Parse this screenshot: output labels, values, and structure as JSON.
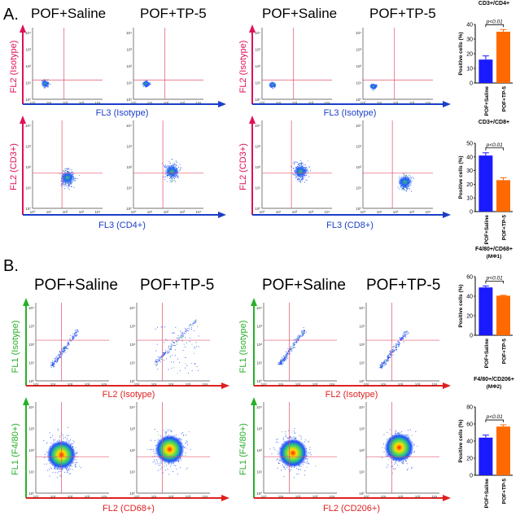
{
  "panel_labels": {
    "a": "A.",
    "b": "B."
  },
  "groups": {
    "saline": "POF+Saline",
    "tp5": "POF+TP-5"
  },
  "panel_a": {
    "left": {
      "iso_y": "FL2 (Isotype)",
      "iso_x": "FL3 (Isotype)",
      "stain_y": "FL2 (CD3+)",
      "stain_x": "FL3 (CD4+)"
    },
    "right": {
      "iso_y": "FL2 (Isotype)",
      "iso_x": "FL3 (Isotype)",
      "stain_y": "FL2 (CD3+)",
      "stain_x": "FL3 (CD8+)"
    }
  },
  "panel_b": {
    "left": {
      "iso_y": "FL1 (Isotype)",
      "iso_x": "FL2 (Isotype)",
      "stain_y": "FL1 (F4/80+)",
      "stain_x": "FL2 (CD68+)"
    },
    "right": {
      "iso_y": "FL1 (Isotype)",
      "iso_x": "FL2 (Isotype)",
      "stain_y": "FL1 (F4/80+)",
      "stain_x": "FL2 (CD206+)"
    }
  },
  "axis_ticks": [
    "10⁰",
    "10¹",
    "10²",
    "10³",
    "10⁴"
  ],
  "colors": {
    "saline": "#1a1aff",
    "tp5": "#ff6a00",
    "fl2_axis": "#e0105a",
    "fl3_axis": "#1a3ec8",
    "fl1_axis": "#28b028",
    "b_fl2_axis": "#e02020",
    "gate": "#e0506a"
  },
  "chart_data": [
    {
      "type": "bar",
      "title": "CD3+/CD4+",
      "categories": [
        "POF+Saline",
        "POF+TP-5"
      ],
      "values": [
        16,
        35
      ],
      "errors": [
        2.5,
        1.5
      ],
      "ylabel": "Positive cells (%)",
      "ylim": [
        0,
        40
      ],
      "yticks": [
        0,
        10,
        20,
        30,
        40
      ],
      "pvalue": "p<0.01"
    },
    {
      "type": "bar",
      "title": "CD3+/CD8+",
      "categories": [
        "POF+Saline",
        "POF+TP-5"
      ],
      "values": [
        41,
        23
      ],
      "errors": [
        2,
        1.8
      ],
      "ylabel": "Positive cells (%)",
      "ylim": [
        0,
        50
      ],
      "yticks": [
        0,
        10,
        20,
        30,
        40,
        50
      ],
      "pvalue": "p<0.01"
    },
    {
      "type": "bar",
      "title": "F4/80+/CD68+",
      "subtitle": "(MΦ1)",
      "categories": [
        "POF+Saline",
        "POF+TP-5"
      ],
      "values": [
        49,
        40.5
      ],
      "errors": [
        1.5,
        0.5
      ],
      "ylabel": "Positive cells (%)",
      "ylim": [
        0,
        60
      ],
      "yticks": [
        0,
        20,
        40,
        60
      ],
      "pvalue": "p<0.01"
    },
    {
      "type": "bar",
      "title": "F4/80+/CD206+",
      "subtitle": "(MΦ2)",
      "categories": [
        "POF+Saline",
        "POF+TP-5"
      ],
      "values": [
        44,
        57
      ],
      "errors": [
        3,
        2
      ],
      "ylabel": "Positive cells (%)",
      "ylim": [
        0,
        80
      ],
      "yticks": [
        0,
        20,
        40,
        60,
        80
      ],
      "pvalue": "p<0.01"
    }
  ]
}
